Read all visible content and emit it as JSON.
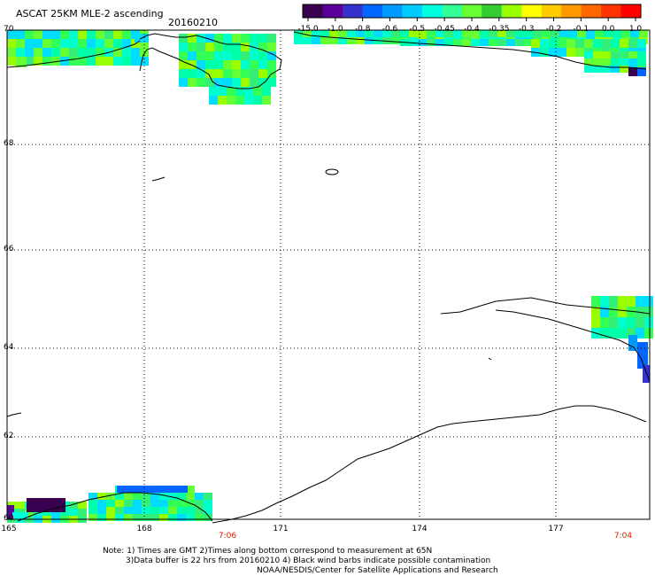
{
  "header": {
    "title": "ASCAT 25KM MLE-2 ascending",
    "date": "20160210"
  },
  "colorbar": {
    "labels": [
      "-15.0",
      "-1.0",
      "-0.8",
      "-0.6",
      "-0.5",
      "-0.45",
      "-0.4",
      "-0.35",
      "-0.3",
      "-0.2",
      "-0.1",
      "0.0",
      "1.0"
    ],
    "colors": [
      "#3a0050",
      "#5a0099",
      "#3333cc",
      "#0066ff",
      "#0099ff",
      "#00ccff",
      "#00ffdd",
      "#33ff99",
      "#66ff33",
      "#33cc33",
      "#99ff00",
      "#ffff00",
      "#ffcc00",
      "#ff9900",
      "#ff6600",
      "#ff3300",
      "#ff0000"
    ]
  },
  "axes": {
    "latitudes": [
      "70",
      "68",
      "66",
      "64",
      "62",
      "60"
    ],
    "longitudes": [
      "165",
      "168",
      "171",
      "174",
      "177"
    ]
  },
  "time_labels": [
    "7:06",
    "7:04"
  ],
  "notes": {
    "line1": "Note: 1) Times are GMT 2)Times along bottom correspond to measurement at 65N",
    "line2": "3)Data buffer is 22 hrs from 20160210 4) Black wind barbs indicate possible contamination",
    "line3": "NOAA/NESDIS/Center for Satellite Applications and Research"
  },
  "colors": {
    "time_label": "#cc2200",
    "grid": "#000000"
  }
}
